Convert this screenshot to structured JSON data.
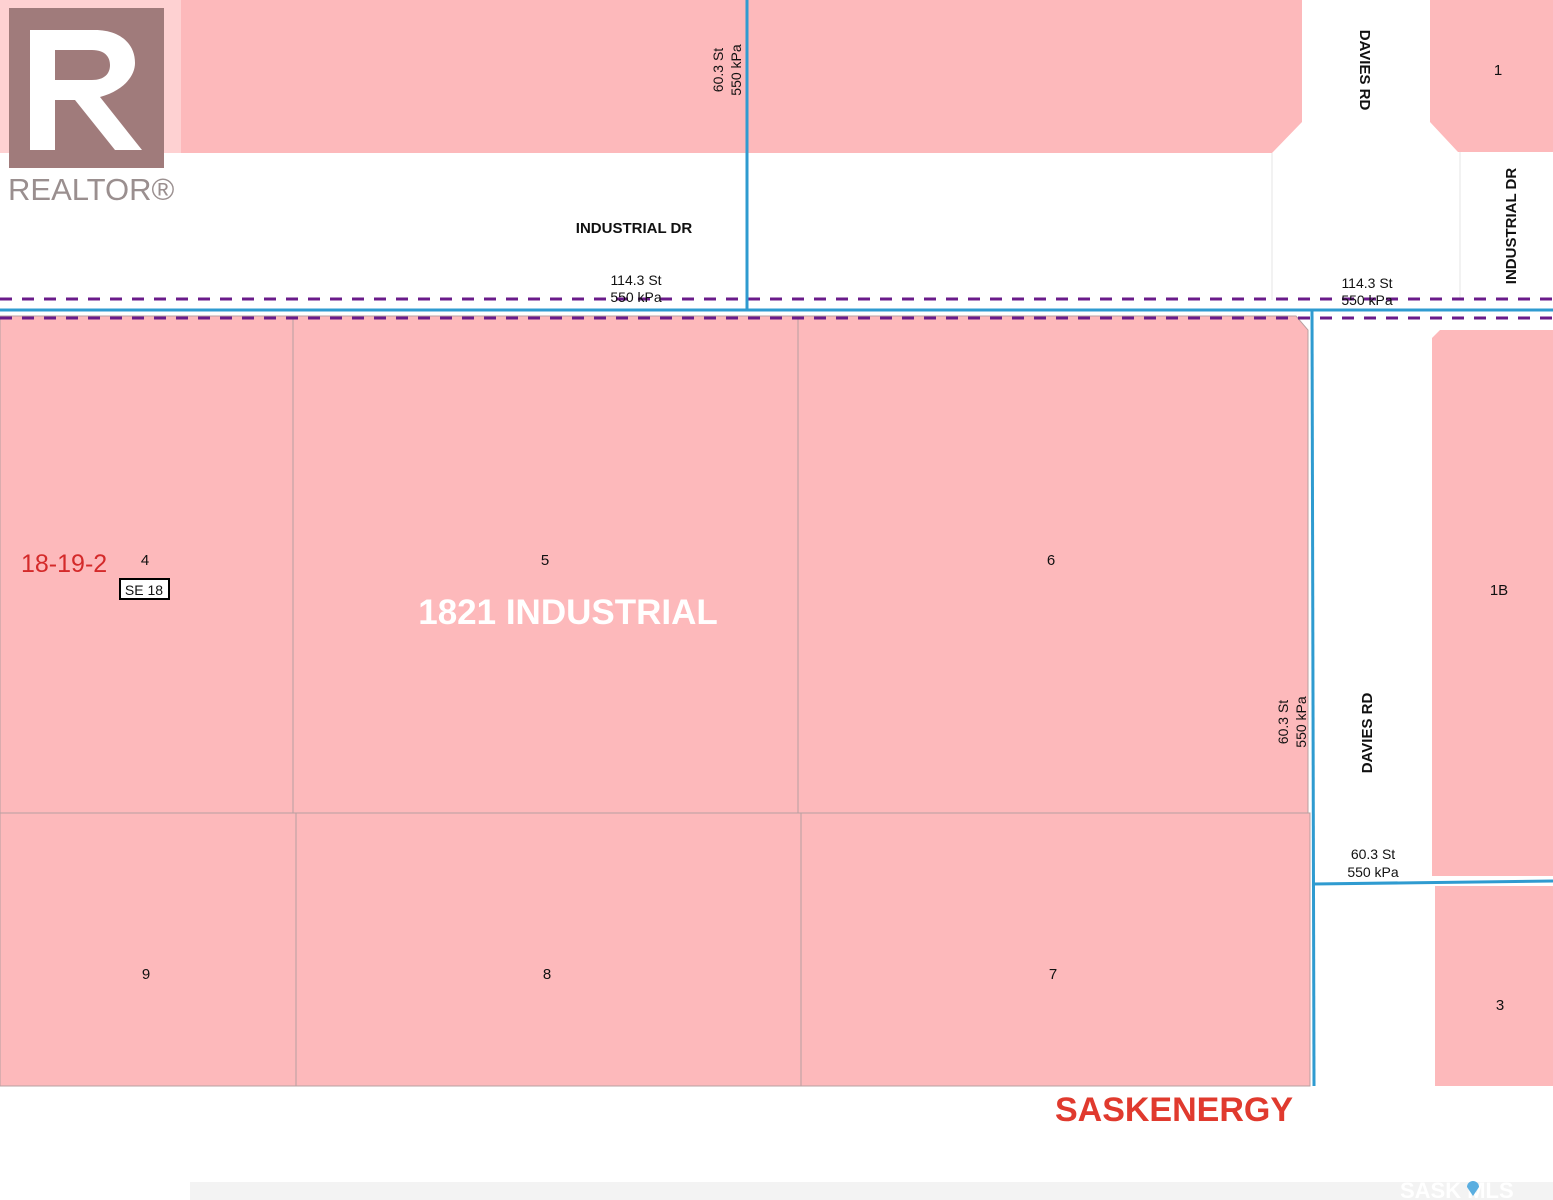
{
  "colors": {
    "parcel": "#fdb9bb",
    "pipeline": "#2f9bd0",
    "boundary": "#6a1b8a",
    "highlight_text": "#d42a2a"
  },
  "logo": {
    "text": "REALTOR®",
    "icon": "realtor-r-logo"
  },
  "roads": {
    "industrial_dr_top": "INDUSTRIAL DR",
    "industrial_dr_right": "INDUSTRIAL DR",
    "davies_rd_top": "DAVIES RD",
    "davies_rd_main": "DAVIES RD"
  },
  "pipelines": {
    "top_vertical": {
      "line1": "60.3 St",
      "line2": "550 kPa"
    },
    "main_left": {
      "line1": "114.3 St",
      "line2": "550 kPa"
    },
    "main_right": {
      "line1": "114.3 St",
      "line2": "550 kPa"
    },
    "davies_vertical": {
      "line1": "60.3 St",
      "line2": "550 kPa"
    },
    "east_branch": {
      "line1": "60.3 St",
      "line2": "550 kPa"
    }
  },
  "lots": {
    "l1": "1",
    "l1b": "1B",
    "l3": "3",
    "l4": "4",
    "l5": "5",
    "l6": "6",
    "l7": "7",
    "l8": "8",
    "l9": "9"
  },
  "legal_land": "18-19-2",
  "quarter_tag": "SE 18",
  "property_label": "1821 INDUSTRIAL",
  "company": "SASKENERGY",
  "watermark": "SASK MLS"
}
